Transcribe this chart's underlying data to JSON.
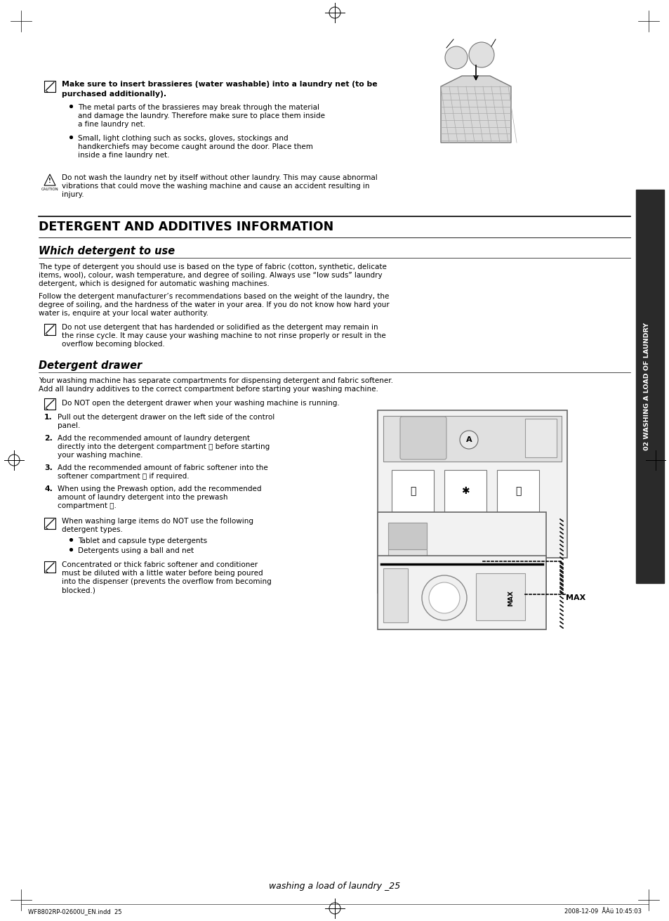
{
  "bg_color": "#ffffff",
  "page_width": 9.54,
  "page_height": 13.11,
  "dpi": 100,
  "sidebar_text": "02 WASHING A LOAD OF LAUNDRY",
  "main_title": "DETERGENT AND ADDITIVES INFORMATION",
  "section1_title": "Which detergent to use",
  "section2_title": "Detergent drawer",
  "caution_bold1": "Make sure to insert brassieres (water washable) into a laundry net (to be",
  "caution_bold2": "purchased additionally).",
  "bullet1a": "The metal parts of the brassieres may break through the material",
  "bullet1b": "and damage the laundry. Therefore make sure to place them inside",
  "bullet1c": "a fine laundry net.",
  "bullet2a": "Small, light clothing such as socks, gloves, stockings and",
  "bullet2b": "handkerchiefs may become caught around the door. Place them",
  "bullet2c": "inside a fine laundry net.",
  "caution2a": "Do not wash the laundry net by itself without other laundry. This may cause abnormal",
  "caution2b": "vibrations that could move the washing machine and cause an accident resulting in",
  "caution2c": "injury.",
  "s1p1a": "The type of detergent you should use is based on the type of fabric (cotton, synthetic, delicate",
  "s1p1b": "items, wool), colour, wash temperature, and degree of soiling. Always use “low suds” laundry",
  "s1p1c": "detergent, which is designed for automatic washing machines.",
  "s1p2a": "Follow the detergent manufacturer’s recommendations based on the weight of the laundry, the",
  "s1p2b": "degree of soiling, and the hardness of the water in your area. If you do not know how hard your",
  "s1p2c": "water is, enquire at your local water authority.",
  "note1a": "Do not use detergent that has hardended or solidified as the detergent may remain in",
  "note1b": "the rinse cycle. It may cause your washing machine to not rinse properly or result in the",
  "note1c": "overflow becoming blocked.",
  "s2i1a": "Your washing machine has separate compartments for dispensing detergent and fabric softener.",
  "s2i1b": "Add all laundry additives to the correct compartment before starting your washing machine.",
  "note2": "Do NOT open the detergent drawer when your washing machine is running.",
  "step1a": "Pull out the detergent drawer on the left side of the control",
  "step1b": "panel.",
  "step2a": "Add the recommended amount of laundry detergent",
  "step2b": "directly into the detergent compartment ⓘ before starting",
  "step2c": "your washing machine.",
  "step3a": "Add the recommended amount of fabric softener into the",
  "step3b": "softener compartment Ⓢ if required.",
  "step4a": "When using the Prewash option, add the recommended",
  "step4b": "amount of laundry detergent into the prewash",
  "step4c": "compartment ⓘ.",
  "note3a": "When washing large items do NOT use the following",
  "note3b": "detergent types.",
  "bullet3": "Tablet and capsule type detergents",
  "bullet4": "Detergents using a ball and net",
  "note4a": "Concentrated or thick fabric softener and conditioner",
  "note4b": "must be diluted with a little water before being poured",
  "note4c": "into the dispenser (prevents the overflow from becoming",
  "note4d": "blocked.)",
  "max_label": "MAX",
  "footer_text": "washing a load of laundry _25",
  "bottom_left": "WF8802RP-02600U_EN.indd  25",
  "bottom_right": "2008-12-09  ÅÀü 10:45:03"
}
